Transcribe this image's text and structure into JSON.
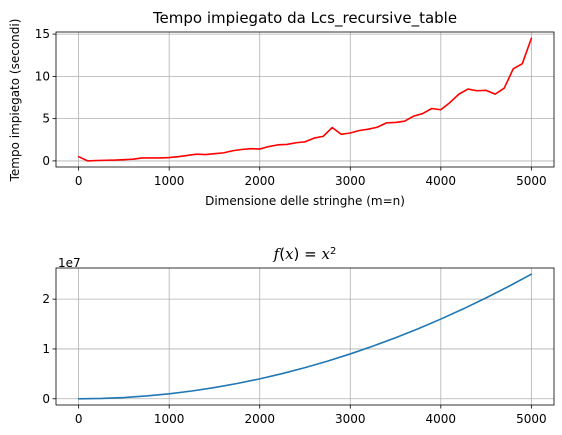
{
  "chart_data": [
    {
      "type": "line",
      "title": "Tempo impiegato da Lcs_recursive_table",
      "xlabel": "Dimensione delle stringhe (m=n)",
      "ylabel": "Tempo impiegato (secondi)",
      "xlim": [
        -250,
        5250
      ],
      "ylim": [
        -0.72,
        15.25
      ],
      "xticks": [
        0,
        1000,
        2000,
        3000,
        4000,
        5000
      ],
      "xtick_labels": [
        "0",
        "1000",
        "2000",
        "3000",
        "4000",
        "5000"
      ],
      "yticks": [
        0,
        5,
        10,
        15
      ],
      "ytick_labels": [
        "0",
        "5",
        "10",
        "15"
      ],
      "grid": true,
      "series": [
        {
          "color": "#ff0000",
          "x": [
            0,
            100,
            200,
            300,
            400,
            500,
            600,
            700,
            800,
            900,
            1000,
            1100,
            1200,
            1300,
            1400,
            1500,
            1600,
            1700,
            1800,
            1900,
            2000,
            2100,
            2200,
            2300,
            2400,
            2500,
            2600,
            2700,
            2800,
            2900,
            3000,
            3100,
            3200,
            3300,
            3400,
            3500,
            3600,
            3700,
            3800,
            3900,
            4000,
            4100,
            4200,
            4300,
            4400,
            4500,
            4600,
            4700,
            4800,
            4900,
            5000
          ],
          "y": [
            0.5,
            0.0,
            0.05,
            0.08,
            0.1,
            0.15,
            0.2,
            0.35,
            0.35,
            0.35,
            0.4,
            0.5,
            0.65,
            0.8,
            0.75,
            0.85,
            0.95,
            1.2,
            1.35,
            1.45,
            1.4,
            1.7,
            1.9,
            1.95,
            2.15,
            2.25,
            2.7,
            2.9,
            3.95,
            3.15,
            3.3,
            3.6,
            3.75,
            4.0,
            4.5,
            4.55,
            4.7,
            5.3,
            5.6,
            6.2,
            6.05,
            6.9,
            7.9,
            8.5,
            8.3,
            8.35,
            7.9,
            8.6,
            10.9,
            11.5,
            14.5
          ]
        }
      ]
    },
    {
      "type": "line",
      "title": "f(x) = x²",
      "title_parts": {
        "prefix": "f",
        "open": "(",
        "variable": "x",
        "close": ") = ",
        "base": "x",
        "exponent": "2"
      },
      "xlabel": "",
      "ylabel": "",
      "xlim": [
        -250,
        5250
      ],
      "ylim": [
        -1250000,
        26250000
      ],
      "xticks": [
        0,
        1000,
        2000,
        3000,
        4000,
        5000
      ],
      "xtick_labels": [
        "0",
        "1000",
        "2000",
        "3000",
        "4000",
        "5000"
      ],
      "yticks": [
        0,
        10000000,
        20000000
      ],
      "ytick_labels": [
        "0",
        "1",
        "2"
      ],
      "offset_text": "1e7",
      "grid": true,
      "series": [
        {
          "color": "#1f77b4",
          "x": [
            0,
            250,
            500,
            750,
            1000,
            1250,
            1500,
            1750,
            2000,
            2250,
            2500,
            2750,
            3000,
            3250,
            3500,
            3750,
            4000,
            4250,
            4500,
            4750,
            5000
          ],
          "y": [
            0,
            62500,
            250000,
            562500,
            1000000,
            1562500,
            2250000,
            3062500,
            4000000,
            5062500,
            6250000,
            7562500,
            9000000,
            10562500,
            12250000,
            14062500,
            16000000,
            18062500,
            20250000,
            22562500,
            25000000
          ]
        }
      ]
    }
  ]
}
